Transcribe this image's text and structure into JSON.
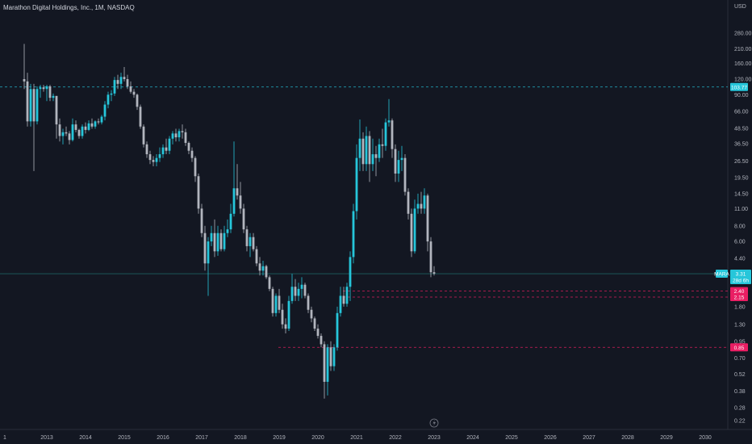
{
  "header": {
    "title": "Marathon Digital Holdings, Inc., 1M, NASDAQ",
    "currency": "USD"
  },
  "symbol_tag": {
    "symbol": "MARA",
    "last_price": "3.31",
    "countdown": "28d 6h"
  },
  "price_tags": [
    {
      "label": "103.77",
      "color": "#26c6da"
    },
    {
      "label": "2.40",
      "color": "#e91e63"
    },
    {
      "label": "2.15",
      "color": "#e91e63"
    },
    {
      "label": "0.85",
      "color": "#e91e63"
    }
  ],
  "reference_lines": [
    {
      "price": 103.77,
      "color": "#26c6da"
    },
    {
      "price": 3.31,
      "color": "#26a69a"
    },
    {
      "price": 2.4,
      "color": "#e91e63"
    },
    {
      "price": 2.15,
      "color": "#e91e63"
    },
    {
      "price": 0.85,
      "color": "#e91e63"
    }
  ],
  "chart_data": {
    "type": "candlestick",
    "title": "Marathon Digital Holdings, Inc., 1M, NASDAQ",
    "y_scale": "log",
    "y_ticks": [
      "280.00",
      "210.00",
      "160.00",
      "120.00",
      "90.00",
      "66.00",
      "48.50",
      "36.50",
      "26.50",
      "19.50",
      "14.50",
      "11.00",
      "8.00",
      "6.00",
      "4.40",
      "1.80",
      "1.30",
      "0.95",
      "0.70",
      "0.52",
      "0.38",
      "0.28",
      "0.22"
    ],
    "x_ticks": [
      "1",
      "2013",
      "2014",
      "2015",
      "2016",
      "2017",
      "2018",
      "2019",
      "2020",
      "2021",
      "2022",
      "2023",
      "2024",
      "2025",
      "2026",
      "2027",
      "2028",
      "2029",
      "2030"
    ],
    "up_color": "#26c6da",
    "down_color": "#b2b5be",
    "candles": [
      {
        "t": "2012-06",
        "o": 120,
        "h": 230,
        "l": 100,
        "c": 115
      },
      {
        "t": "2012-07",
        "o": 115,
        "h": 135,
        "l": 50,
        "c": 55
      },
      {
        "t": "2012-08",
        "o": 55,
        "h": 110,
        "l": 50,
        "c": 100
      },
      {
        "t": "2012-09",
        "o": 100,
        "h": 110,
        "l": 22,
        "c": 55
      },
      {
        "t": "2012-10",
        "o": 55,
        "h": 105,
        "l": 52,
        "c": 100
      },
      {
        "t": "2012-11",
        "o": 100,
        "h": 108,
        "l": 85,
        "c": 103
      },
      {
        "t": "2012-12",
        "o": 103,
        "h": 108,
        "l": 95,
        "c": 100
      },
      {
        "t": "2013-01",
        "o": 100,
        "h": 108,
        "l": 80,
        "c": 105
      },
      {
        "t": "2013-02",
        "o": 105,
        "h": 108,
        "l": 80,
        "c": 85
      },
      {
        "t": "2013-03",
        "o": 85,
        "h": 92,
        "l": 80,
        "c": 88
      },
      {
        "t": "2013-04",
        "o": 88,
        "h": 88,
        "l": 40,
        "c": 52
      },
      {
        "t": "2013-05",
        "o": 52,
        "h": 58,
        "l": 38,
        "c": 42
      },
      {
        "t": "2013-06",
        "o": 42,
        "h": 48,
        "l": 36,
        "c": 45
      },
      {
        "t": "2013-07",
        "o": 45,
        "h": 50,
        "l": 42,
        "c": 44
      },
      {
        "t": "2013-08",
        "o": 44,
        "h": 46,
        "l": 36,
        "c": 39
      },
      {
        "t": "2013-09",
        "o": 39,
        "h": 58,
        "l": 38,
        "c": 52
      },
      {
        "t": "2013-10",
        "o": 52,
        "h": 56,
        "l": 45,
        "c": 47
      },
      {
        "t": "2013-11",
        "o": 47,
        "h": 48,
        "l": 40,
        "c": 42
      },
      {
        "t": "2013-12",
        "o": 42,
        "h": 52,
        "l": 40,
        "c": 50
      },
      {
        "t": "2014-01",
        "o": 50,
        "h": 54,
        "l": 44,
        "c": 47
      },
      {
        "t": "2014-02",
        "o": 47,
        "h": 56,
        "l": 46,
        "c": 53
      },
      {
        "t": "2014-03",
        "o": 53,
        "h": 58,
        "l": 48,
        "c": 50
      },
      {
        "t": "2014-04",
        "o": 50,
        "h": 56,
        "l": 48,
        "c": 55
      },
      {
        "t": "2014-05",
        "o": 55,
        "h": 58,
        "l": 52,
        "c": 54
      },
      {
        "t": "2014-06",
        "o": 54,
        "h": 62,
        "l": 52,
        "c": 60
      },
      {
        "t": "2014-07",
        "o": 60,
        "h": 80,
        "l": 56,
        "c": 75
      },
      {
        "t": "2014-08",
        "o": 75,
        "h": 95,
        "l": 70,
        "c": 90
      },
      {
        "t": "2014-09",
        "o": 90,
        "h": 98,
        "l": 80,
        "c": 92
      },
      {
        "t": "2014-10",
        "o": 92,
        "h": 125,
        "l": 88,
        "c": 118
      },
      {
        "t": "2014-11",
        "o": 118,
        "h": 130,
        "l": 100,
        "c": 110
      },
      {
        "t": "2014-12",
        "o": 110,
        "h": 135,
        "l": 100,
        "c": 125
      },
      {
        "t": "2015-01",
        "o": 125,
        "h": 150,
        "l": 115,
        "c": 120
      },
      {
        "t": "2015-02",
        "o": 120,
        "h": 130,
        "l": 100,
        "c": 105
      },
      {
        "t": "2015-03",
        "o": 105,
        "h": 115,
        "l": 92,
        "c": 95
      },
      {
        "t": "2015-04",
        "o": 95,
        "h": 100,
        "l": 85,
        "c": 90
      },
      {
        "t": "2015-05",
        "o": 90,
        "h": 92,
        "l": 68,
        "c": 72
      },
      {
        "t": "2015-06",
        "o": 72,
        "h": 75,
        "l": 48,
        "c": 50
      },
      {
        "t": "2015-07",
        "o": 50,
        "h": 52,
        "l": 34,
        "c": 36
      },
      {
        "t": "2015-08",
        "o": 36,
        "h": 38,
        "l": 28,
        "c": 30
      },
      {
        "t": "2015-09",
        "o": 30,
        "h": 32,
        "l": 25,
        "c": 27
      },
      {
        "t": "2015-10",
        "o": 27,
        "h": 29,
        "l": 24,
        "c": 26
      },
      {
        "t": "2015-11",
        "o": 26,
        "h": 30,
        "l": 24,
        "c": 28
      },
      {
        "t": "2015-12",
        "o": 28,
        "h": 34,
        "l": 26,
        "c": 30
      },
      {
        "t": "2016-01",
        "o": 30,
        "h": 36,
        "l": 28,
        "c": 34
      },
      {
        "t": "2016-02",
        "o": 34,
        "h": 40,
        "l": 30,
        "c": 32
      },
      {
        "t": "2016-03",
        "o": 32,
        "h": 42,
        "l": 30,
        "c": 40
      },
      {
        "t": "2016-04",
        "o": 40,
        "h": 46,
        "l": 36,
        "c": 44
      },
      {
        "t": "2016-05",
        "o": 44,
        "h": 48,
        "l": 38,
        "c": 41
      },
      {
        "t": "2016-06",
        "o": 41,
        "h": 48,
        "l": 38,
        "c": 46
      },
      {
        "t": "2016-07",
        "o": 46,
        "h": 52,
        "l": 40,
        "c": 45
      },
      {
        "t": "2016-08",
        "o": 45,
        "h": 48,
        "l": 35,
        "c": 37
      },
      {
        "t": "2016-09",
        "o": 37,
        "h": 38,
        "l": 30,
        "c": 32
      },
      {
        "t": "2016-10",
        "o": 32,
        "h": 34,
        "l": 26,
        "c": 28
      },
      {
        "t": "2016-11",
        "o": 28,
        "h": 29,
        "l": 18,
        "c": 20
      },
      {
        "t": "2016-12",
        "o": 20,
        "h": 21,
        "l": 10,
        "c": 11
      },
      {
        "t": "2017-01",
        "o": 11,
        "h": 12,
        "l": 6.5,
        "c": 7
      },
      {
        "t": "2017-02",
        "o": 7,
        "h": 8,
        "l": 3.5,
        "c": 4
      },
      {
        "t": "2017-03",
        "o": 4,
        "h": 6.5,
        "l": 2.2,
        "c": 6
      },
      {
        "t": "2017-04",
        "o": 6,
        "h": 8,
        "l": 5.5,
        "c": 7
      },
      {
        "t": "2017-05",
        "o": 7,
        "h": 9,
        "l": 4.5,
        "c": 5
      },
      {
        "t": "2017-06",
        "o": 5,
        "h": 8,
        "l": 4.6,
        "c": 7
      },
      {
        "t": "2017-07",
        "o": 7,
        "h": 7.5,
        "l": 5,
        "c": 5.2
      },
      {
        "t": "2017-08",
        "o": 5.2,
        "h": 8,
        "l": 5,
        "c": 7
      },
      {
        "t": "2017-09",
        "o": 7,
        "h": 9,
        "l": 6.5,
        "c": 7.5
      },
      {
        "t": "2017-10",
        "o": 7.5,
        "h": 12,
        "l": 7,
        "c": 10
      },
      {
        "t": "2017-11",
        "o": 10,
        "h": 38,
        "l": 9.5,
        "c": 16
      },
      {
        "t": "2017-12",
        "o": 16,
        "h": 25,
        "l": 13,
        "c": 14
      },
      {
        "t": "2018-01",
        "o": 14,
        "h": 18,
        "l": 10,
        "c": 11
      },
      {
        "t": "2018-02",
        "o": 11,
        "h": 12,
        "l": 7,
        "c": 7.5
      },
      {
        "t": "2018-03",
        "o": 7.5,
        "h": 8,
        "l": 5,
        "c": 5.5
      },
      {
        "t": "2018-04",
        "o": 5.5,
        "h": 7,
        "l": 4.5,
        "c": 6.5
      },
      {
        "t": "2018-05",
        "o": 6.5,
        "h": 7,
        "l": 5,
        "c": 5.2
      },
      {
        "t": "2018-06",
        "o": 5.2,
        "h": 5.5,
        "l": 3.8,
        "c": 4
      },
      {
        "t": "2018-07",
        "o": 4,
        "h": 4.5,
        "l": 3.2,
        "c": 3.5
      },
      {
        "t": "2018-08",
        "o": 3.5,
        "h": 4.2,
        "l": 3.2,
        "c": 3.8
      },
      {
        "t": "2018-09",
        "o": 3.8,
        "h": 3.9,
        "l": 3,
        "c": 3.1
      },
      {
        "t": "2018-10",
        "o": 3.1,
        "h": 3.2,
        "l": 2.4,
        "c": 2.5
      },
      {
        "t": "2018-11",
        "o": 2.5,
        "h": 2.6,
        "l": 1.5,
        "c": 1.6
      },
      {
        "t": "2018-12",
        "o": 1.6,
        "h": 2.3,
        "l": 1.5,
        "c": 2.2
      },
      {
        "t": "2019-01",
        "o": 2.2,
        "h": 2.5,
        "l": 1.6,
        "c": 1.7
      },
      {
        "t": "2019-02",
        "o": 1.7,
        "h": 1.9,
        "l": 1.2,
        "c": 1.3
      },
      {
        "t": "2019-03",
        "o": 1.3,
        "h": 1.45,
        "l": 1.1,
        "c": 1.2
      },
      {
        "t": "2019-04",
        "o": 1.2,
        "h": 2.2,
        "l": 1.15,
        "c": 2
      },
      {
        "t": "2019-05",
        "o": 2,
        "h": 3.3,
        "l": 1.9,
        "c": 2.6
      },
      {
        "t": "2019-06",
        "o": 2.6,
        "h": 3,
        "l": 2,
        "c": 2.2
      },
      {
        "t": "2019-07",
        "o": 2.2,
        "h": 2.8,
        "l": 2,
        "c": 2.5
      },
      {
        "t": "2019-08",
        "o": 2.5,
        "h": 3.1,
        "l": 2.1,
        "c": 2.7
      },
      {
        "t": "2019-09",
        "o": 2.7,
        "h": 2.8,
        "l": 2.1,
        "c": 2.2
      },
      {
        "t": "2019-10",
        "o": 2.2,
        "h": 2.3,
        "l": 1.6,
        "c": 1.7
      },
      {
        "t": "2019-11",
        "o": 1.7,
        "h": 1.8,
        "l": 1.35,
        "c": 1.45
      },
      {
        "t": "2019-12",
        "o": 1.45,
        "h": 1.5,
        "l": 1.15,
        "c": 1.2
      },
      {
        "t": "2020-01",
        "o": 1.2,
        "h": 1.3,
        "l": 1,
        "c": 1.05
      },
      {
        "t": "2020-02",
        "o": 1.05,
        "h": 1.1,
        "l": 0.85,
        "c": 0.9
      },
      {
        "t": "2020-03",
        "o": 0.9,
        "h": 0.95,
        "l": 0.33,
        "c": 0.45
      },
      {
        "t": "2020-04",
        "o": 0.45,
        "h": 0.9,
        "l": 0.35,
        "c": 0.85
      },
      {
        "t": "2020-05",
        "o": 0.85,
        "h": 0.95,
        "l": 0.55,
        "c": 0.6
      },
      {
        "t": "2020-06",
        "o": 0.6,
        "h": 0.9,
        "l": 0.55,
        "c": 0.85
      },
      {
        "t": "2020-07",
        "o": 0.85,
        "h": 1.8,
        "l": 0.8,
        "c": 1.6
      },
      {
        "t": "2020-08",
        "o": 1.6,
        "h": 2.6,
        "l": 1.5,
        "c": 2.2
      },
      {
        "t": "2020-09",
        "o": 2.2,
        "h": 2.6,
        "l": 1.8,
        "c": 1.9
      },
      {
        "t": "2020-10",
        "o": 1.9,
        "h": 2.8,
        "l": 1.8,
        "c": 2.6
      },
      {
        "t": "2020-11",
        "o": 2.6,
        "h": 5,
        "l": 2,
        "c": 4.5
      },
      {
        "t": "2020-12",
        "o": 4.5,
        "h": 12,
        "l": 4,
        "c": 10.5
      },
      {
        "t": "2021-01",
        "o": 10.5,
        "h": 36,
        "l": 9,
        "c": 28
      },
      {
        "t": "2021-02",
        "o": 28,
        "h": 57,
        "l": 22,
        "c": 40
      },
      {
        "t": "2021-03",
        "o": 40,
        "h": 45,
        "l": 22,
        "c": 25
      },
      {
        "t": "2021-04",
        "o": 25,
        "h": 50,
        "l": 22,
        "c": 42
      },
      {
        "t": "2021-05",
        "o": 42,
        "h": 46,
        "l": 18,
        "c": 25
      },
      {
        "t": "2021-06",
        "o": 25,
        "h": 40,
        "l": 22,
        "c": 30
      },
      {
        "t": "2021-07",
        "o": 30,
        "h": 35,
        "l": 20,
        "c": 28
      },
      {
        "t": "2021-08",
        "o": 28,
        "h": 40,
        "l": 26,
        "c": 36
      },
      {
        "t": "2021-09",
        "o": 36,
        "h": 48,
        "l": 28,
        "c": 35
      },
      {
        "t": "2021-10",
        "o": 35,
        "h": 58,
        "l": 32,
        "c": 54
      },
      {
        "t": "2021-11",
        "o": 54,
        "h": 83,
        "l": 50,
        "c": 56
      },
      {
        "t": "2021-12",
        "o": 56,
        "h": 58,
        "l": 28,
        "c": 33
      },
      {
        "t": "2022-01",
        "o": 33,
        "h": 36,
        "l": 18,
        "c": 21
      },
      {
        "t": "2022-02",
        "o": 21,
        "h": 32,
        "l": 18,
        "c": 27
      },
      {
        "t": "2022-03",
        "o": 27,
        "h": 35,
        "l": 22,
        "c": 28
      },
      {
        "t": "2022-04",
        "o": 28,
        "h": 30,
        "l": 14,
        "c": 15
      },
      {
        "t": "2022-05",
        "o": 15,
        "h": 16,
        "l": 9,
        "c": 10
      },
      {
        "t": "2022-06",
        "o": 10,
        "h": 11,
        "l": 4.5,
        "c": 5
      },
      {
        "t": "2022-07",
        "o": 5,
        "h": 13,
        "l": 4.8,
        "c": 11
      },
      {
        "t": "2022-08",
        "o": 11,
        "h": 14.5,
        "l": 10,
        "c": 12
      },
      {
        "t": "2022-09",
        "o": 12,
        "h": 15,
        "l": 10,
        "c": 11
      },
      {
        "t": "2022-10",
        "o": 11,
        "h": 16,
        "l": 10,
        "c": 14
      },
      {
        "t": "2022-11",
        "o": 14,
        "h": 14.5,
        "l": 5,
        "c": 6
      },
      {
        "t": "2022-12",
        "o": 6,
        "h": 6.5,
        "l": 3.1,
        "c": 3.4
      },
      {
        "t": "2023-01",
        "o": 3.4,
        "h": 3.8,
        "l": 3.2,
        "c": 3.31
      }
    ]
  }
}
